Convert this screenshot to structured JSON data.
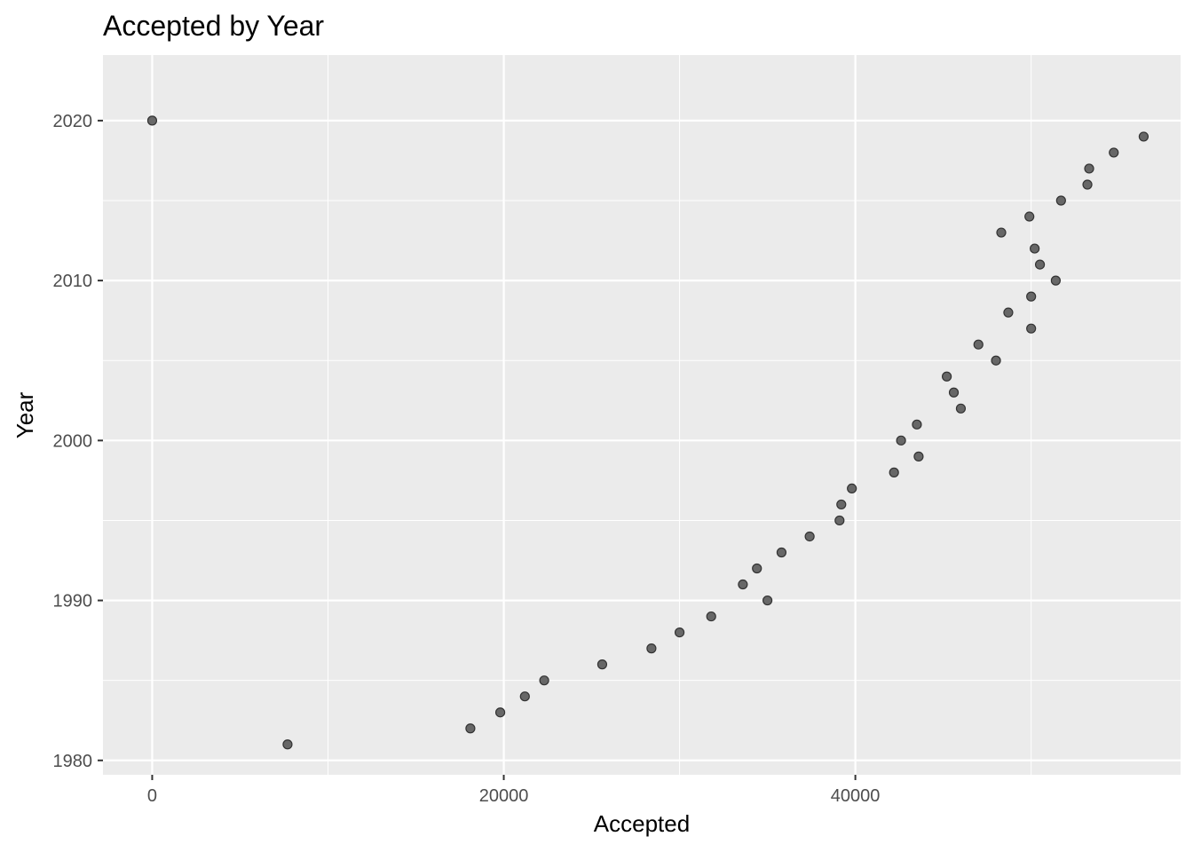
{
  "chart_data": {
    "type": "scatter",
    "title": "Accepted by Year",
    "xlabel": "Accepted",
    "ylabel": "Year",
    "xlim": [
      -2800,
      58500
    ],
    "ylim": [
      1979.1,
      2024.1
    ],
    "x_major_ticks": [
      0,
      20000,
      40000
    ],
    "x_minor_ticks": [
      10000,
      30000,
      50000
    ],
    "y_major_ticks": [
      1980,
      1990,
      2000,
      2010,
      2020
    ],
    "y_minor_ticks": [
      1985,
      1995,
      2005,
      2015
    ],
    "grid": true,
    "legend": "none",
    "colors": {
      "panel": "#ebebeb",
      "grid": "#ffffff",
      "point_fill": "#595959",
      "point_stroke": "#333333",
      "tick_label": "#4d4d4d"
    },
    "points": [
      {
        "x": 0,
        "y": 2020
      },
      {
        "x": 7700,
        "y": 1981
      },
      {
        "x": 18100,
        "y": 1982
      },
      {
        "x": 19800,
        "y": 1983
      },
      {
        "x": 21200,
        "y": 1984
      },
      {
        "x": 22300,
        "y": 1985
      },
      {
        "x": 25600,
        "y": 1986
      },
      {
        "x": 28400,
        "y": 1987
      },
      {
        "x": 30000,
        "y": 1988
      },
      {
        "x": 31800,
        "y": 1989
      },
      {
        "x": 35000,
        "y": 1990
      },
      {
        "x": 33600,
        "y": 1991
      },
      {
        "x": 34400,
        "y": 1992
      },
      {
        "x": 35800,
        "y": 1993
      },
      {
        "x": 37400,
        "y": 1994
      },
      {
        "x": 39100,
        "y": 1995
      },
      {
        "x": 39200,
        "y": 1996
      },
      {
        "x": 39800,
        "y": 1997
      },
      {
        "x": 42200,
        "y": 1998
      },
      {
        "x": 43600,
        "y": 1999
      },
      {
        "x": 42600,
        "y": 2000
      },
      {
        "x": 43500,
        "y": 2001
      },
      {
        "x": 46000,
        "y": 2002
      },
      {
        "x": 45600,
        "y": 2003
      },
      {
        "x": 45200,
        "y": 2004
      },
      {
        "x": 48000,
        "y": 2005
      },
      {
        "x": 47000,
        "y": 2006
      },
      {
        "x": 50000,
        "y": 2007
      },
      {
        "x": 48700,
        "y": 2008
      },
      {
        "x": 50000,
        "y": 2009
      },
      {
        "x": 51400,
        "y": 2010
      },
      {
        "x": 50500,
        "y": 2011
      },
      {
        "x": 50200,
        "y": 2012
      },
      {
        "x": 48300,
        "y": 2013
      },
      {
        "x": 49900,
        "y": 2014
      },
      {
        "x": 51700,
        "y": 2015
      },
      {
        "x": 53200,
        "y": 2016
      },
      {
        "x": 53300,
        "y": 2017
      },
      {
        "x": 54700,
        "y": 2018
      },
      {
        "x": 56400,
        "y": 2019
      }
    ]
  }
}
